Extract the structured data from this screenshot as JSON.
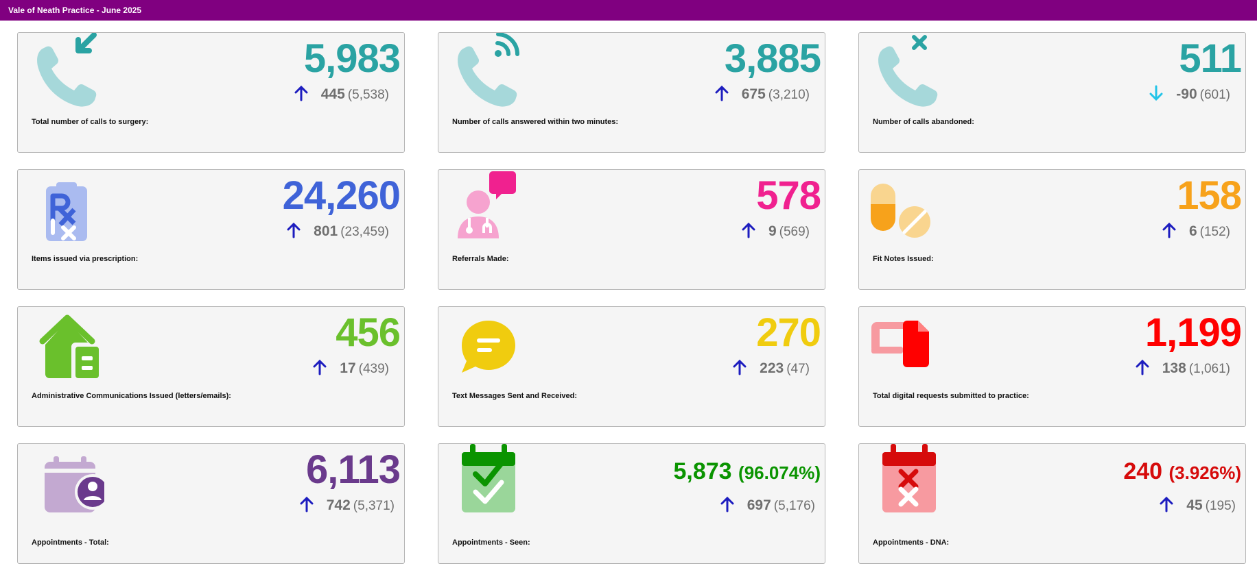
{
  "header": {
    "title": "Vale of Neath Practice - June 2025"
  },
  "colors": {
    "teal": "#2aa3a3",
    "teal_light": "#a6d8da",
    "blue": "#3f63d8",
    "blue_light": "#aabbf0",
    "pink": "#f0218f",
    "pink_light": "#f6a3cf",
    "orange": "#f7a21b",
    "orange_light": "#f9d58f",
    "green": "#6ac02c",
    "yellow": "#f0cc0f",
    "red": "#ff0000",
    "red_light": "#f79aa0",
    "purple": "#6a3a8c",
    "purple_light": "#c3a9d1",
    "dark_green": "#0a9400",
    "green_light": "#9ad69a",
    "dark_red": "#d60b0b",
    "arrow_up": "#1d1dbf",
    "arrow_down": "#23c4e8"
  },
  "cards": [
    {
      "icon": "phone-incoming-icon",
      "value": "5,983",
      "change": "445",
      "previous": "(5,538)",
      "direction": "up",
      "label": "Total number of calls to surgery:"
    },
    {
      "icon": "phone-answered-icon",
      "value": "3,885",
      "change": "675",
      "previous": "(3,210)",
      "direction": "up",
      "label": "Number of calls answered within two minutes:"
    },
    {
      "icon": "phone-abandoned-icon",
      "value": "511",
      "change": "-90",
      "previous": "(601)",
      "direction": "down",
      "label": "Number of calls abandoned:"
    },
    {
      "icon": "prescription-icon",
      "value": "24,260",
      "change": "801",
      "previous": "(23,459)",
      "direction": "up",
      "label": "Items issued via prescription:"
    },
    {
      "icon": "doctor-referral-icon",
      "value": "578",
      "change": "9",
      "previous": "(569)",
      "direction": "up",
      "label": "Referrals Made:"
    },
    {
      "icon": "pills-icon",
      "value": "158",
      "change": "6",
      "previous": "(152)",
      "direction": "up",
      "label": "Fit Notes Issued:"
    },
    {
      "icon": "house-letter-icon",
      "value": "456",
      "change": "17",
      "previous": "(439)",
      "direction": "up",
      "label": "Administrative Communications Issued (letters/emails):"
    },
    {
      "icon": "chat-bubble-icon",
      "value": "270",
      "change": "223",
      "previous": "(47)",
      "direction": "up",
      "label": "Text Messages Sent and Received:"
    },
    {
      "icon": "digital-request-icon",
      "value": "1,199",
      "change": "138",
      "previous": "(1,061)",
      "direction": "up",
      "label": "Total digital requests submitted to practice:"
    },
    {
      "icon": "calendar-person-icon",
      "value": "6,113",
      "change": "742",
      "previous": "(5,371)",
      "direction": "up",
      "label": "Appointments - Total:"
    },
    {
      "icon": "calendar-check-icon",
      "value": "5,873",
      "pct": "(96.074%)",
      "change": "697",
      "previous": "(5,176)",
      "direction": "up",
      "label": "Appointments - Seen:"
    },
    {
      "icon": "calendar-cross-icon",
      "value": "240",
      "pct": "(3.926%)",
      "change": "45",
      "previous": "(195)",
      "direction": "up",
      "label": "Appointments - DNA:"
    }
  ]
}
